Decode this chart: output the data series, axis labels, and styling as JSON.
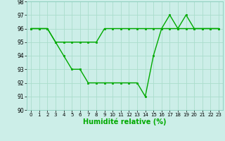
{
  "xlabel": "Humidité relative (%)",
  "background_color": "#cceee8",
  "grid_color": "#aaddcc",
  "line_color": "#00aa00",
  "ylim": [
    90,
    98
  ],
  "xlim": [
    -0.5,
    23.5
  ],
  "yticks": [
    90,
    91,
    92,
    93,
    94,
    95,
    96,
    97,
    98
  ],
  "xticks": [
    0,
    1,
    2,
    3,
    4,
    5,
    6,
    7,
    8,
    9,
    10,
    11,
    12,
    13,
    14,
    15,
    16,
    17,
    18,
    19,
    20,
    21,
    22,
    23
  ],
  "line1_x": [
    0,
    1,
    2,
    3,
    4,
    5,
    6,
    7,
    8,
    9,
    10,
    11,
    12,
    13,
    14,
    15,
    16,
    17,
    18,
    19,
    20,
    21,
    22,
    23
  ],
  "line1_y": [
    96,
    96,
    96,
    95,
    94,
    93,
    93,
    92,
    92,
    92,
    92,
    92,
    92,
    92,
    91,
    94,
    96,
    97,
    96,
    97,
    96,
    96,
    96,
    96
  ],
  "line2_x": [
    0,
    1,
    2,
    3,
    4,
    5,
    6,
    7,
    8,
    9,
    10,
    11,
    12,
    13,
    14,
    15,
    16,
    17,
    18,
    19,
    20,
    21,
    22,
    23
  ],
  "line2_y": [
    96,
    96,
    96,
    95,
    95,
    95,
    95,
    95,
    95,
    96,
    96,
    96,
    96,
    96,
    96,
    96,
    96,
    96,
    96,
    96,
    96,
    96,
    96,
    96
  ],
  "xlabel_fontsize": 7,
  "tick_fontsize": 5,
  "ytick_fontsize": 5.5,
  "linewidth": 1.0,
  "markersize": 2.0
}
